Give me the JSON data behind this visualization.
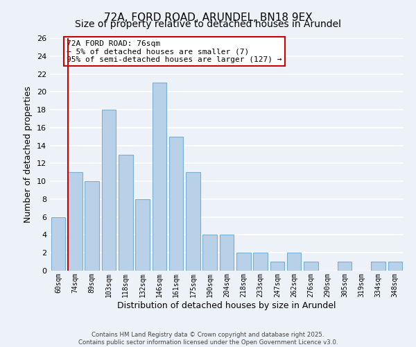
{
  "title": "72A, FORD ROAD, ARUNDEL, BN18 9EX",
  "subtitle": "Size of property relative to detached houses in Arundel",
  "xlabel": "Distribution of detached houses by size in Arundel",
  "ylabel": "Number of detached properties",
  "categories": [
    "60sqm",
    "74sqm",
    "89sqm",
    "103sqm",
    "118sqm",
    "132sqm",
    "146sqm",
    "161sqm",
    "175sqm",
    "190sqm",
    "204sqm",
    "218sqm",
    "233sqm",
    "247sqm",
    "262sqm",
    "276sqm",
    "290sqm",
    "305sqm",
    "319sqm",
    "334sqm",
    "348sqm"
  ],
  "values": [
    6,
    11,
    10,
    18,
    13,
    8,
    21,
    15,
    11,
    4,
    4,
    2,
    2,
    1,
    2,
    1,
    0,
    1,
    0,
    1,
    1
  ],
  "bar_color": "#b8d0e8",
  "bar_edge_color": "#7aafd4",
  "vline_x_index": 1,
  "vline_color": "#cc0000",
  "ylim": [
    0,
    26
  ],
  "yticks": [
    0,
    2,
    4,
    6,
    8,
    10,
    12,
    14,
    16,
    18,
    20,
    22,
    24,
    26
  ],
  "annotation_title": "72A FORD ROAD: 76sqm",
  "annotation_line1": "← 5% of detached houses are smaller (7)",
  "annotation_line2": "95% of semi-detached houses are larger (127) →",
  "annotation_box_color": "#ffffff",
  "annotation_box_edge": "#cc0000",
  "footer_line1": "Contains HM Land Registry data © Crown copyright and database right 2025.",
  "footer_line2": "Contains public sector information licensed under the Open Government Licence v3.0.",
  "bg_color": "#edf2f9",
  "plot_bg_color": "#edf2f9",
  "grid_color": "#ffffff",
  "title_fontsize": 11,
  "subtitle_fontsize": 10
}
